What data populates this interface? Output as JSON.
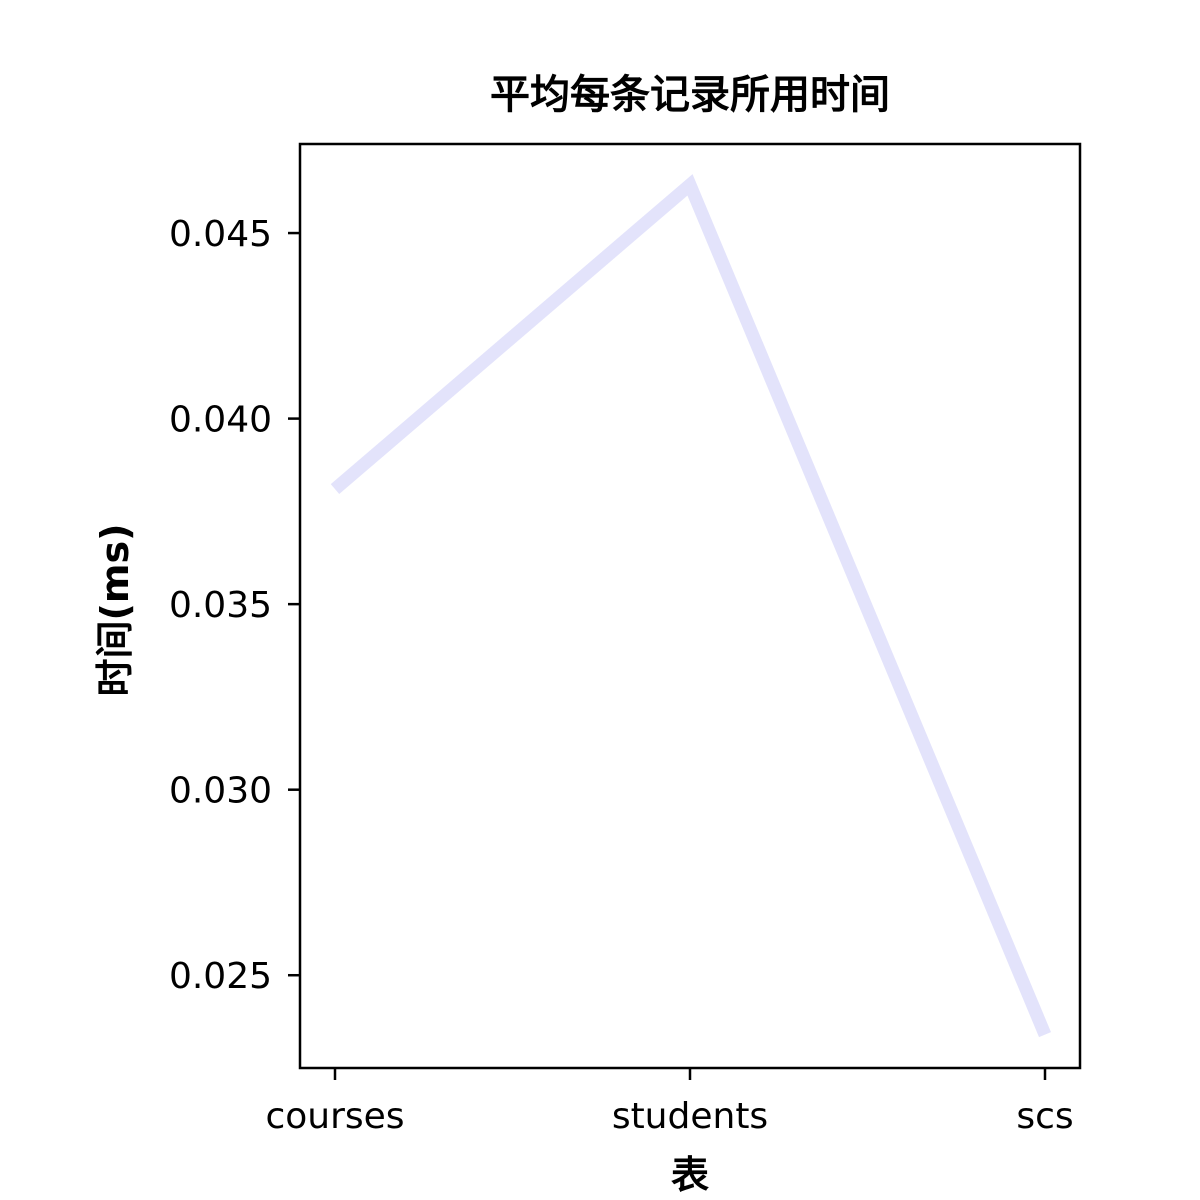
{
  "chart_data": {
    "type": "line",
    "title": "平均每条记录所用时间",
    "xlabel": "表",
    "ylabel": "时间(ms)",
    "categories": [
      "courses",
      "students",
      "scs"
    ],
    "series": [
      {
        "values": [
          0.0381,
          0.0463,
          0.0234
        ],
        "color": "#e3e3fb"
      }
    ],
    "ylim": [
      0.0225,
      0.0474
    ],
    "yticks": [
      0.025,
      0.03,
      0.035,
      0.04,
      0.045
    ],
    "ytick_labels": [
      "0.025",
      "0.030",
      "0.035",
      "0.040",
      "0.045"
    ],
    "grid": false,
    "legend": "none"
  }
}
